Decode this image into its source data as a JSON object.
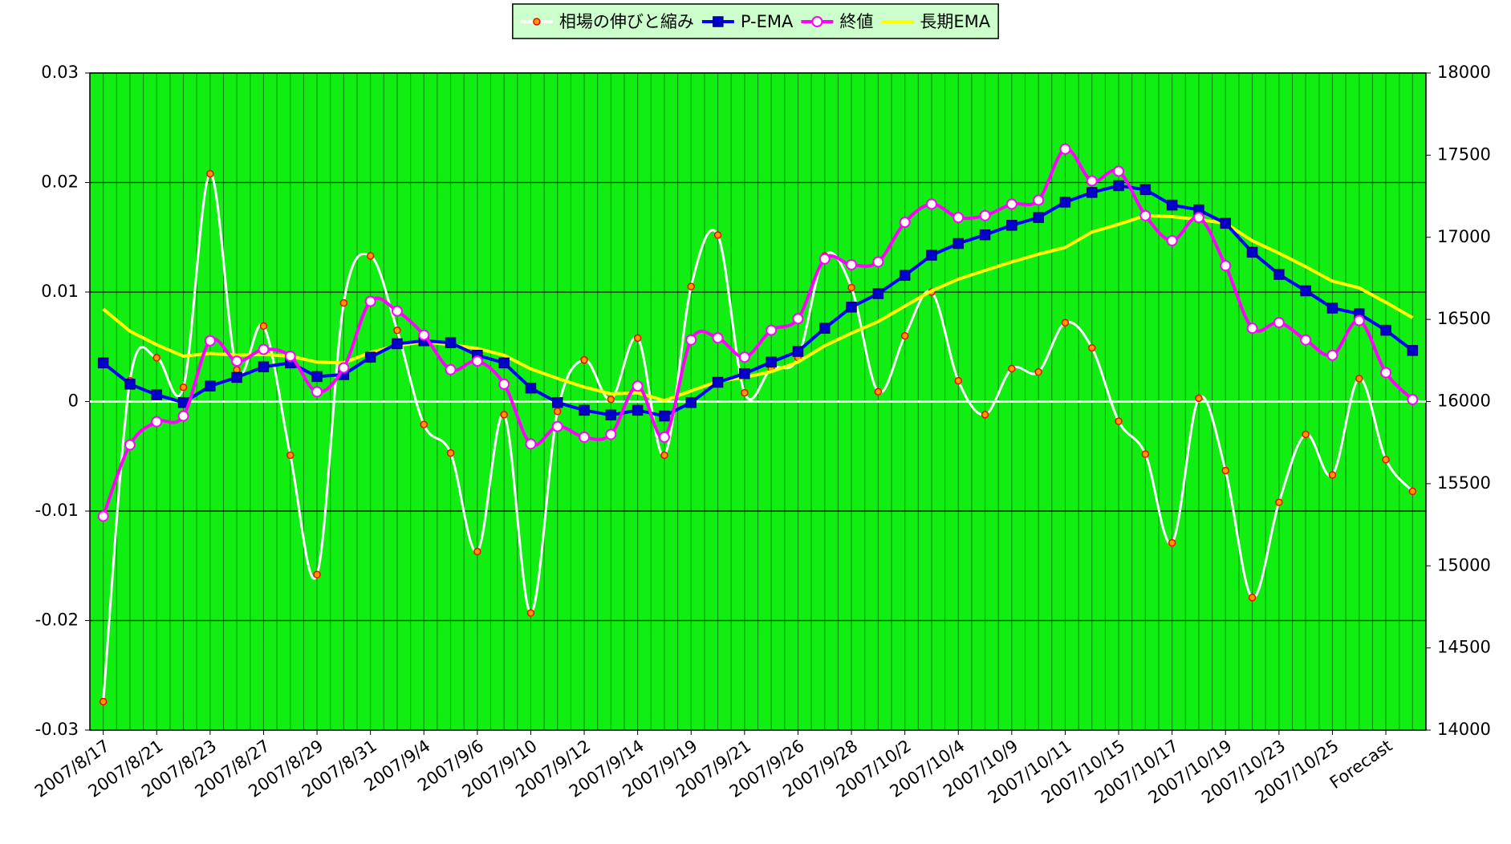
{
  "chart_data": {
    "type": "line",
    "categories": [
      "2007/8/17",
      null,
      "2007/8/21",
      null,
      "2007/8/23",
      null,
      "2007/8/27",
      null,
      "2007/8/29",
      null,
      "2007/8/31",
      null,
      "2007/9/4",
      null,
      "2007/9/6",
      null,
      "2007/9/10",
      null,
      "2007/9/12",
      null,
      "2007/9/14",
      null,
      "2007/9/19",
      null,
      "2007/9/21",
      null,
      "2007/9/26",
      null,
      "2007/9/28",
      null,
      "2007/10/2",
      null,
      "2007/10/4",
      null,
      "2007/10/9",
      null,
      "2007/10/11",
      null,
      "2007/10/15",
      null,
      "2007/10/17",
      null,
      "2007/10/19",
      null,
      "2007/10/23",
      null,
      "2007/10/25",
      null,
      "Forecast",
      null
    ],
    "series": [
      {
        "name": "相場の伸びと縮み",
        "color": "#ffffff",
        "marker": "circle",
        "marker_fill": "#ff9900",
        "marker_edge": "#ff0000",
        "smooth": true,
        "axis": "y",
        "values": [
          -0.0274,
          0.0019,
          0.004,
          0.0013,
          0.0208,
          0.0029,
          0.0069,
          -0.0049,
          -0.0158,
          0.009,
          0.0133,
          0.0065,
          -0.0021,
          -0.0047,
          -0.0137,
          -0.0012,
          -0.0193,
          -0.0009,
          0.0038,
          0.0002,
          0.0058,
          -0.0049,
          0.0105,
          0.0152,
          0.0008,
          0.003,
          0.004,
          0.0133,
          0.0104,
          0.0009,
          0.006,
          0.01,
          0.0019,
          -0.0012,
          0.003,
          0.0027,
          0.0072,
          0.0049,
          -0.0018,
          -0.0048,
          -0.0129,
          0.0003,
          -0.0063,
          -0.0179,
          -0.0092,
          -0.003,
          -0.0067,
          0.0021,
          -0.0053,
          -0.0082
        ]
      },
      {
        "name": "P-EMA",
        "color": "#0000ff",
        "marker": "square",
        "marker_fill": "#0000cc",
        "marker_edge": "#000080",
        "smooth": false,
        "axis": "y2",
        "values": [
          16235,
          16106,
          16041,
          15994,
          16094,
          16147,
          16211,
          16235,
          16152,
          16164,
          16270,
          16352,
          16370,
          16358,
          16282,
          16235,
          16082,
          15994,
          15947,
          15918,
          15947,
          15912,
          15994,
          16117,
          16170,
          16240,
          16305,
          16446,
          16575,
          16657,
          16768,
          16891,
          16962,
          17015,
          17073,
          17120,
          17214,
          17273,
          17314,
          17290,
          17196,
          17167,
          17085,
          16909,
          16774,
          16674,
          16569,
          16534,
          16434,
          16311
        ]
      },
      {
        "name": "終値",
        "color": "#ff00ff",
        "marker": "circle",
        "marker_fill": "#ffffff",
        "marker_edge": "#ff00ff",
        "smooth": true,
        "axis": "y2",
        "values": [
          15302,
          15736,
          15877,
          15912,
          16370,
          16246,
          16317,
          16276,
          16059,
          16205,
          16610,
          16551,
          16405,
          16194,
          16246,
          16106,
          15742,
          15848,
          15783,
          15800,
          16094,
          15783,
          16375,
          16387,
          16270,
          16434,
          16504,
          16868,
          16833,
          16850,
          17091,
          17202,
          17120,
          17132,
          17202,
          17226,
          17537,
          17343,
          17402,
          17132,
          16979,
          17120,
          16827,
          16446,
          16481,
          16375,
          16282,
          16493,
          16176,
          16012
        ]
      },
      {
        "name": "長期EMA",
        "color": "#ffff00",
        "marker": "none",
        "marker_fill": "#ffff00",
        "marker_edge": "#ffff00",
        "smooth": false,
        "axis": "y2",
        "values": [
          16563,
          16428,
          16346,
          16276,
          16293,
          16282,
          16287,
          16276,
          16240,
          16235,
          16299,
          16340,
          16364,
          16346,
          16323,
          16282,
          16199,
          16141,
          16088,
          16047,
          16053,
          16006,
          16065,
          16123,
          16147,
          16182,
          16240,
          16340,
          16416,
          16487,
          16581,
          16674,
          16745,
          16798,
          16850,
          16897,
          16938,
          17032,
          17079,
          17132,
          17126,
          17108,
          17085,
          16979,
          16903,
          16821,
          16733,
          16692,
          16604,
          16510
        ]
      }
    ],
    "ylim": [
      -0.03,
      0.03
    ],
    "yticks": [
      -0.03,
      -0.02,
      -0.01,
      0,
      0.01,
      0.02,
      0.03
    ],
    "y2lim": [
      14000,
      18000
    ],
    "y2ticks": [
      14000,
      14500,
      15000,
      15500,
      16000,
      16500,
      17000,
      17500,
      18000
    ],
    "grid": true,
    "plot_color": "#11ee11",
    "legend": "top"
  }
}
